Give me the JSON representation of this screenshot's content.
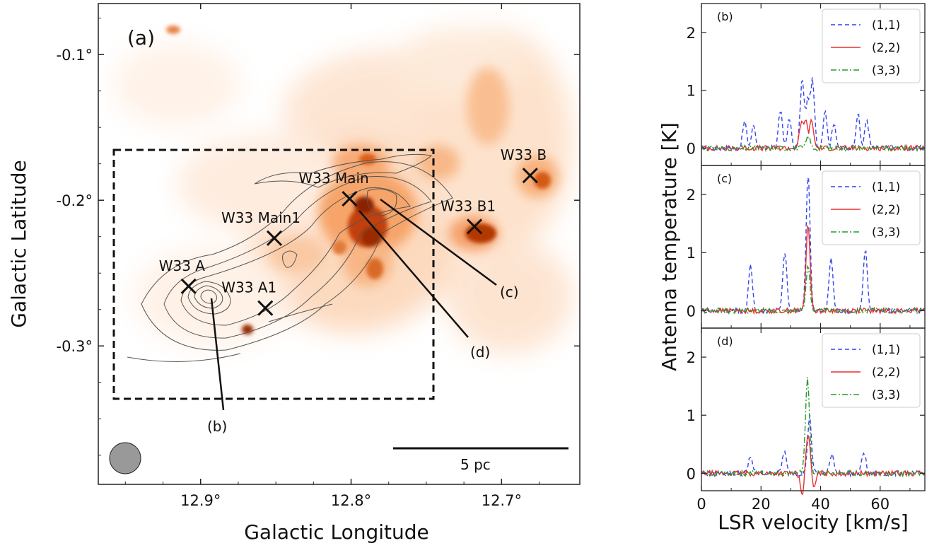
{
  "figure": {
    "map": {
      "panel_label": "(a)",
      "xlabel": "Galactic Longitude",
      "ylabel": "Galactic Latitude",
      "x_ticks": [
        "12.9°",
        "12.8°",
        "12.7°"
      ],
      "y_ticks": [
        "-0.1°",
        "-0.2°",
        "-0.3°"
      ],
      "scalebar_label": "5 pc",
      "sources": [
        {
          "name": "W33 A",
          "l": 12.908,
          "b": -0.259
        },
        {
          "name": "W33 A1",
          "l": 12.857,
          "b": -0.274
        },
        {
          "name": "W33 Main1",
          "l": 12.851,
          "b": -0.226
        },
        {
          "name": "W33 Main",
          "l": 12.801,
          "b": -0.199
        },
        {
          "name": "W33 B1",
          "l": 12.718,
          "b": -0.218
        },
        {
          "name": "W33 B",
          "l": 12.681,
          "b": -0.183
        }
      ],
      "pointer_labels": [
        "(b)",
        "(c)",
        "(d)"
      ],
      "colormap": "white-to-dark-red emission image",
      "contours": "grey",
      "region_box": "dashed black rectangle",
      "beam": "grey circle bottom-left"
    },
    "spectra_ylabel": "Antenna temperature [K]",
    "spectra_xlabel": "LSR velocity [km/s]"
  },
  "chart_data": [
    {
      "type": "heatmap",
      "panel": "(a)",
      "xlabel": "Galactic Longitude",
      "ylabel": "Galactic Latitude",
      "xlim": [
        12.968,
        12.648
      ],
      "ylim": [
        -0.395,
        -0.065
      ],
      "x_ticks": [
        12.9,
        12.8,
        12.7
      ],
      "y_ticks": [
        -0.1,
        -0.2,
        -0.3
      ],
      "annotations": [
        "W33 A",
        "W33 A1",
        "W33 Main1",
        "W33 Main",
        "W33 B1",
        "W33 B",
        "(b)",
        "(c)",
        "(d)",
        "5 pc"
      ]
    },
    {
      "type": "line",
      "panel": "(b)",
      "xlim": [
        0,
        75
      ],
      "ylim": [
        -0.3,
        2.5
      ],
      "x_ticks": [
        0,
        20,
        40,
        60
      ],
      "y_ticks": [
        0,
        1,
        2
      ],
      "legend_position": "top-right",
      "series": [
        {
          "name": "(1,1)",
          "color": "#3344ee",
          "style": "dashed",
          "peaks": [
            [
              14.5,
              0.46
            ],
            [
              17.5,
              0.4
            ],
            [
              26.5,
              0.65
            ],
            [
              29.5,
              0.5
            ],
            [
              33.8,
              1.18
            ],
            [
              35.7,
              0.8
            ],
            [
              37.3,
              1.14
            ],
            [
              41.5,
              0.67
            ],
            [
              44.5,
              0.45
            ],
            [
              52.5,
              0.6
            ],
            [
              55.5,
              0.5
            ]
          ]
        },
        {
          "name": "(2,2)",
          "color": "#e83030",
          "style": "solid",
          "peaks": [
            [
              33.5,
              0.4
            ],
            [
              35.0,
              0.45
            ],
            [
              37.0,
              0.48
            ]
          ]
        },
        {
          "name": "(3,3)",
          "color": "#2a9a2a",
          "style": "dashdot",
          "peaks": [
            [
              35.8,
              0.2
            ]
          ]
        }
      ]
    },
    {
      "type": "line",
      "panel": "(c)",
      "xlim": [
        0,
        75
      ],
      "ylim": [
        -0.3,
        2.5
      ],
      "x_ticks": [
        0,
        20,
        40,
        60
      ],
      "y_ticks": [
        0,
        1,
        2
      ],
      "legend_position": "top-right",
      "series": [
        {
          "name": "(1,1)",
          "color": "#3344ee",
          "style": "dashed",
          "peaks": [
            [
              16.5,
              0.78
            ],
            [
              28.0,
              1.02
            ],
            [
              35.8,
              2.4
            ],
            [
              43.5,
              0.92
            ],
            [
              55.0,
              1.05
            ]
          ]
        },
        {
          "name": "(2,2)",
          "color": "#e83030",
          "style": "solid",
          "peaks": [
            [
              35.8,
              1.52
            ]
          ]
        },
        {
          "name": "(3,3)",
          "color": "#2a9a2a",
          "style": "dashdot",
          "peaks": [
            [
              35.8,
              0.8
            ]
          ]
        }
      ]
    },
    {
      "type": "line",
      "panel": "(d)",
      "xlim": [
        0,
        75
      ],
      "ylim": [
        -0.3,
        2.5
      ],
      "x_ticks": [
        0,
        20,
        40,
        60
      ],
      "y_ticks": [
        0,
        1,
        2
      ],
      "legend_position": "top-right",
      "series": [
        {
          "name": "(1,1)",
          "color": "#3344ee",
          "style": "dashed",
          "peaks": [
            [
              16.5,
              0.3
            ],
            [
              27.8,
              0.38
            ],
            [
              36.3,
              0.98
            ],
            [
              43.8,
              0.35
            ],
            [
              54.5,
              0.38
            ]
          ]
        },
        {
          "name": "(2,2)",
          "color": "#e83030",
          "style": "solid",
          "peaks": [
            [
              35.8,
              0.7
            ]
          ]
        },
        {
          "name": "(3,3)",
          "color": "#2a9a2a",
          "style": "dashdot",
          "peaks": [
            [
              35.6,
              1.68
            ]
          ]
        }
      ]
    }
  ]
}
